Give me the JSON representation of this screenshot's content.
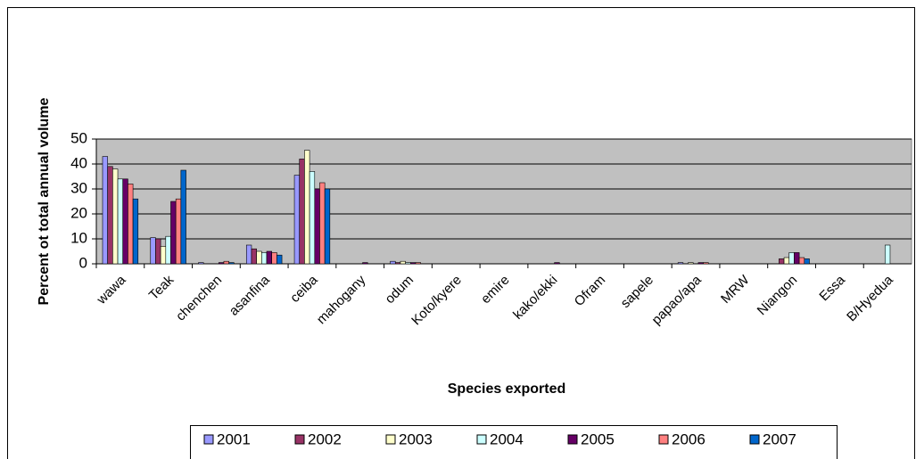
{
  "chart_data": {
    "type": "bar",
    "y_label": "Percent ot total annual volume",
    "x_label": "Species exported",
    "categories": [
      "wawa",
      "Teak",
      "chenchen",
      "asanfina",
      "ceiba",
      "mahogany",
      "odum",
      "Koto/kyere",
      "emire",
      "kako/ekki",
      "Ofram",
      "sapele",
      "papao/apa",
      "MRW",
      "Niangon",
      "Essa",
      "B/Hyedua"
    ],
    "series": [
      {
        "name": "2001",
        "color": "#9999ff",
        "values": [
          43,
          10.5,
          0.5,
          7.5,
          35.5,
          0,
          1,
          0,
          0,
          0,
          0,
          0,
          0.5,
          0,
          0,
          0,
          0
        ]
      },
      {
        "name": "2002",
        "color": "#993366",
        "values": [
          39,
          10,
          0,
          6,
          42,
          0,
          0.5,
          0,
          0,
          0,
          0,
          0,
          0,
          0,
          2,
          0,
          0
        ]
      },
      {
        "name": "2003",
        "color": "#ffffcc",
        "values": [
          38,
          7,
          0,
          5,
          45.5,
          0,
          1,
          0,
          0,
          0,
          0,
          0,
          0.5,
          0,
          2.5,
          0,
          0
        ]
      },
      {
        "name": "2004",
        "color": "#ccffff",
        "values": [
          34,
          11,
          0,
          4.5,
          37,
          0,
          0.5,
          0,
          0,
          0,
          0,
          0,
          0,
          0,
          4.5,
          0,
          7.5
        ]
      },
      {
        "name": "2005",
        "color": "#660066",
        "values": [
          34,
          25,
          0.5,
          5,
          30,
          0.5,
          0.5,
          0,
          0,
          0.5,
          0,
          0,
          0.5,
          0,
          4.5,
          0,
          0
        ]
      },
      {
        "name": "2006",
        "color": "#ff8080",
        "values": [
          32,
          26,
          1,
          4.5,
          32.5,
          0,
          0.5,
          0,
          0,
          0,
          0,
          0,
          0.5,
          0,
          2.5,
          0,
          0
        ]
      },
      {
        "name": "2007",
        "color": "#0066cc",
        "values": [
          26,
          37.5,
          0.5,
          3.5,
          30,
          0,
          0,
          0,
          0,
          0,
          0,
          0,
          0,
          0,
          2,
          0,
          0
        ]
      }
    ],
    "ylim": [
      0,
      50
    ],
    "yticks": [
      0,
      10,
      20,
      30,
      40,
      50
    ],
    "grid": true,
    "plot_background": "#c0c0c0",
    "legend": "bottom"
  }
}
